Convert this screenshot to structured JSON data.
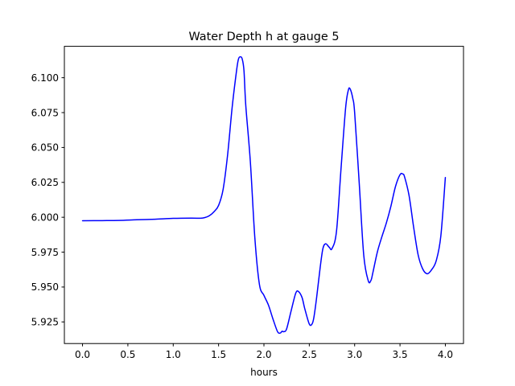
{
  "chart_data": {
    "type": "line",
    "title": "Water Depth h at gauge 5",
    "xlabel": "hours",
    "ylabel": "",
    "xlim": [
      -0.2,
      4.2
    ],
    "ylim": [
      5.9095,
      6.1225
    ],
    "xticks": [
      0.0,
      0.5,
      1.0,
      1.5,
      2.0,
      2.5,
      3.0,
      3.5,
      4.0
    ],
    "xtick_labels": [
      "0.0",
      "0.5",
      "1.0",
      "1.5",
      "2.0",
      "2.5",
      "3.0",
      "3.5",
      "4.0"
    ],
    "yticks": [
      5.925,
      5.95,
      5.975,
      6.0,
      6.025,
      6.05,
      6.075,
      6.1
    ],
    "ytick_labels": [
      "5.925",
      "5.950",
      "5.975",
      "6.000",
      "6.025",
      "6.050",
      "6.075",
      "6.100"
    ],
    "grid": false,
    "legend": "none",
    "series": [
      {
        "color": "#0000ff",
        "x": [
          0.0,
          0.2,
          0.4,
          0.6,
          0.8,
          1.0,
          1.2,
          1.3,
          1.35,
          1.4,
          1.45,
          1.5,
          1.55,
          1.6,
          1.65,
          1.7,
          1.72,
          1.74,
          1.76,
          1.78,
          1.8,
          1.85,
          1.9,
          1.95,
          2.0,
          2.05,
          2.1,
          2.15,
          2.18,
          2.2,
          2.22,
          2.25,
          2.3,
          2.35,
          2.38,
          2.42,
          2.45,
          2.5,
          2.53,
          2.55,
          2.58,
          2.62,
          2.65,
          2.68,
          2.72,
          2.75,
          2.8,
          2.85,
          2.9,
          2.93,
          2.95,
          2.98,
          3.0,
          3.05,
          3.1,
          3.15,
          3.18,
          3.2,
          3.25,
          3.3,
          3.35,
          3.4,
          3.45,
          3.5,
          3.53,
          3.55,
          3.6,
          3.65,
          3.7,
          3.75,
          3.8,
          3.85,
          3.9,
          3.95,
          4.0
        ],
        "y": [
          5.9975,
          5.9976,
          5.9977,
          5.9982,
          5.9986,
          5.9992,
          5.9994,
          5.9993,
          5.9998,
          6.0012,
          6.004,
          6.0085,
          6.02,
          6.045,
          6.079,
          6.106,
          6.1135,
          6.115,
          6.1135,
          6.105,
          6.08,
          6.04,
          5.985,
          5.952,
          5.944,
          5.937,
          5.927,
          5.918,
          5.917,
          5.9183,
          5.918,
          5.92,
          5.933,
          5.9455,
          5.9468,
          5.9425,
          5.9345,
          5.9235,
          5.9235,
          5.928,
          5.942,
          5.964,
          5.9775,
          5.981,
          5.9785,
          5.9775,
          5.99,
          6.035,
          6.078,
          6.091,
          6.092,
          6.085,
          6.075,
          6.025,
          5.973,
          5.9545,
          5.9548,
          5.96,
          5.975,
          5.986,
          5.996,
          6.008,
          6.022,
          6.0305,
          6.031,
          6.029,
          6.0155,
          5.993,
          5.973,
          5.963,
          5.9595,
          5.9625,
          5.969,
          5.9865,
          6.0285
        ]
      }
    ]
  }
}
